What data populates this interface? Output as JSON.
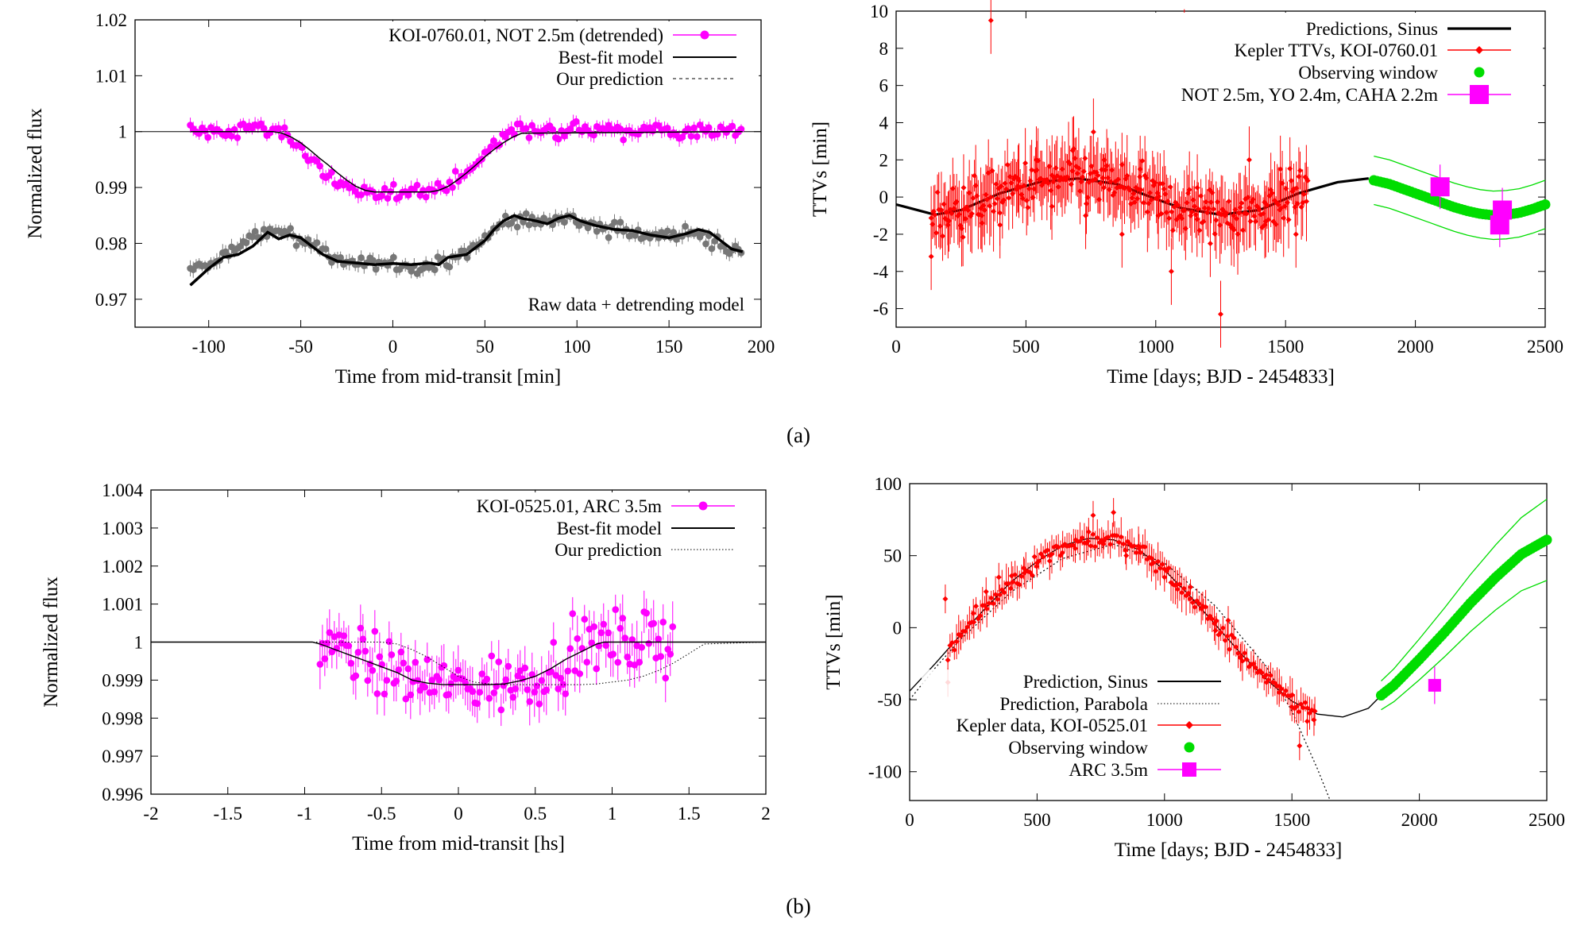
{
  "captions": [
    "(a)",
    "(b)"
  ],
  "chart_data": [
    {
      "id": "a-left",
      "type": "scatter",
      "xlabel": "Time from mid-transit [min]",
      "ylabel": "Normalized flux",
      "xlim": [
        -140,
        200
      ],
      "ylim": [
        0.965,
        1.02
      ],
      "xticks": [
        -100,
        -50,
        0,
        50,
        100,
        150,
        200
      ],
      "yticks": [
        0.97,
        0.98,
        0.99,
        1,
        1.01,
        1.02
      ],
      "ytick_labels": [
        "0.97",
        "0.98",
        "0.99",
        "1",
        "1.01",
        "1.02"
      ],
      "legend_position": "top-right",
      "annotations": [
        "Raw data + detrending model"
      ],
      "series": [
        {
          "name": "KOI-0760.01, NOT 2.5m (detrended)",
          "kind": "points",
          "color": "#ff00ff",
          "note": "scatter of ~190 points following the model, sigma ~0.0015",
          "x": [
            -110,
            -100,
            -90,
            -80,
            -70,
            -60,
            -50,
            -40,
            -30,
            -20,
            -10,
            0,
            10,
            20,
            30,
            40,
            50,
            60,
            70,
            80,
            90,
            100,
            110,
            120,
            130,
            140,
            150,
            160,
            170,
            180,
            190
          ],
          "y": [
            1.0005,
            1.0,
            0.9995,
            1.0015,
            1.0003,
            0.9995,
            0.997,
            0.9935,
            0.991,
            0.9895,
            0.9885,
            0.989,
            0.9895,
            0.989,
            0.9905,
            0.9925,
            0.996,
            0.9995,
            1.001,
            1.0005,
            1.0,
            1.001,
            0.9995,
            1.0005,
            1.0,
            1.001,
            1.0,
            0.9995,
            1.0005,
            1.0,
            1.0003
          ]
        },
        {
          "name": "Best-fit model",
          "kind": "line",
          "color": "#000000",
          "x": [
            -110,
            -65,
            -60,
            -55,
            -50,
            -45,
            -40,
            -35,
            -30,
            -25,
            -20,
            -15,
            -10,
            20,
            25,
            30,
            35,
            40,
            45,
            50,
            55,
            60,
            65,
            70,
            190
          ],
          "y": [
            1.0,
            1.0,
            0.9997,
            0.999,
            0.998,
            0.9967,
            0.9953,
            0.994,
            0.9926,
            0.9913,
            0.9902,
            0.9895,
            0.9892,
            0.9892,
            0.9895,
            0.9902,
            0.9913,
            0.9926,
            0.994,
            0.9955,
            0.9968,
            0.998,
            0.999,
            0.9997,
            1.0
          ]
        },
        {
          "name": "Our prediction",
          "kind": "dashed-line",
          "color": "#000000",
          "x": [],
          "y": []
        },
        {
          "name": "Raw data",
          "kind": "points",
          "color": "#777777",
          "x": [
            -110,
            -100,
            -90,
            -80,
            -70,
            -60,
            -50,
            -40,
            -30,
            -20,
            -10,
            0,
            10,
            20,
            30,
            40,
            50,
            60,
            70,
            80,
            90,
            100,
            110,
            120,
            130,
            140,
            150,
            160,
            170,
            180,
            190
          ],
          "y": [
            0.975,
            0.976,
            0.978,
            0.98,
            0.982,
            0.982,
            0.981,
            0.979,
            0.977,
            0.9765,
            0.976,
            0.976,
            0.976,
            0.9765,
            0.977,
            0.978,
            0.9805,
            0.9835,
            0.984,
            0.9835,
            0.985,
            0.984,
            0.983,
            0.9825,
            0.982,
            0.9815,
            0.981,
            0.982,
            0.981,
            0.979,
            0.978
          ]
        },
        {
          "name": "Detrending model",
          "kind": "line",
          "color": "#000000",
          "x": [
            -110,
            -100,
            -92,
            -84,
            -76,
            -68,
            -62,
            -56,
            -50,
            -44,
            -38,
            -30,
            -20,
            -10,
            0,
            10,
            20,
            25,
            30,
            40,
            50,
            55,
            60,
            66,
            70,
            78,
            84,
            90,
            96,
            102,
            110,
            120,
            130,
            140,
            150,
            160,
            166,
            172,
            178,
            184,
            190
          ],
          "y": [
            0.9725,
            0.9755,
            0.9775,
            0.978,
            0.9795,
            0.982,
            0.9808,
            0.9815,
            0.981,
            0.9795,
            0.978,
            0.9768,
            0.9765,
            0.9762,
            0.9764,
            0.9762,
            0.9765,
            0.9762,
            0.9775,
            0.978,
            0.9805,
            0.9825,
            0.984,
            0.985,
            0.9845,
            0.984,
            0.9835,
            0.9845,
            0.985,
            0.984,
            0.9832,
            0.9825,
            0.9823,
            0.9815,
            0.981,
            0.9818,
            0.9825,
            0.982,
            0.9805,
            0.979,
            0.9785
          ]
        }
      ]
    },
    {
      "id": "a-right",
      "type": "scatter",
      "xlabel": "Time [days; BJD - 2454833]",
      "ylabel": "TTVs [min]",
      "xlim": [
        0,
        2500
      ],
      "ylim": [
        -7,
        10
      ],
      "xticks": [
        0,
        500,
        1000,
        1500,
        2000,
        2500
      ],
      "yticks": [
        -6,
        -4,
        -2,
        0,
        2,
        4,
        6,
        8,
        10
      ],
      "legend_position": "top-right",
      "series": [
        {
          "name": "Predictions, Sinus",
          "kind": "line",
          "color": "#000000",
          "x": [
            0,
            150,
            250,
            400,
            550,
            700,
            850,
            1000,
            1100,
            1250,
            1400,
            1550,
            1700,
            1820
          ],
          "y": [
            -0.4,
            -0.95,
            -0.7,
            0.2,
            0.8,
            1.0,
            0.7,
            -0.1,
            -0.6,
            -0.95,
            -0.7,
            0.2,
            0.8,
            1.0
          ]
        },
        {
          "name": "Kepler TTVs, KOI-0760.01",
          "kind": "points-with-errorbars",
          "color": "#ff0000",
          "note": "~300 points between 130 and 1590 days, error bars ~1-3 min",
          "x": [
            135,
            200,
            260,
            330,
            365,
            400,
            470,
            540,
            600,
            640,
            680,
            730,
            760,
            800,
            870,
            940,
            1010,
            1060,
            1110,
            1160,
            1210,
            1250,
            1300,
            1360,
            1420,
            1480,
            1540,
            1580
          ],
          "y": [
            -3.2,
            -1.5,
            0.5,
            -1.0,
            9.5,
            -1.5,
            1.0,
            2.0,
            -0.5,
            1.5,
            2.5,
            -1.0,
            3.5,
            0.5,
            -2.0,
            1.5,
            -1.0,
            -4.0,
            8.3,
            0.5,
            -2.5,
            -6.3,
            -1.0,
            2.0,
            -1.5,
            1.5,
            -2.0,
            1.0
          ]
        },
        {
          "name": "Observing window",
          "kind": "band",
          "color": "#00dd00",
          "x": [
            1840,
            1900,
            1950,
            2000,
            2050,
            2100,
            2150,
            2200,
            2250,
            2300,
            2350,
            2400,
            2450,
            2500
          ],
          "y": [
            0.9,
            0.7,
            0.45,
            0.2,
            -0.05,
            -0.3,
            -0.55,
            -0.75,
            -0.9,
            -0.98,
            -0.95,
            -0.85,
            -0.65,
            -0.4
          ]
        },
        {
          "name": "NOT 2.5m, YO 2.4m, CAHA 2.2m",
          "kind": "points-with-errorbars",
          "color": "#ff00ff",
          "x": [
            2095,
            2325,
            2335
          ],
          "y": [
            0.55,
            -1.5,
            -0.7
          ]
        }
      ]
    },
    {
      "id": "b-left",
      "type": "scatter",
      "xlabel": "Time from mid-transit [hs]",
      "ylabel": "Normalized flux",
      "xlim": [
        -2,
        2
      ],
      "ylim": [
        0.996,
        1.004
      ],
      "xticks": [
        -2,
        -1.5,
        -1,
        -0.5,
        0,
        0.5,
        1,
        1.5,
        2
      ],
      "xtick_labels": [
        "-2",
        "-1.5",
        "-1",
        "-0.5",
        "0",
        "0.5",
        "1",
        "1.5",
        "2"
      ],
      "yticks": [
        0.996,
        0.997,
        0.998,
        0.999,
        1,
        1.001,
        1.002,
        1.003,
        1.004
      ],
      "ytick_labels": [
        "0.996",
        "0.997",
        "0.998",
        "0.999",
        "1",
        "1.001",
        "1.002",
        "1.003",
        "1.004"
      ],
      "legend_position": "top-right",
      "series": [
        {
          "name": "KOI-0525.01, ARC 3.5m",
          "kind": "points-with-errorbars",
          "color": "#ff00ff",
          "note": "~150 points between -0.9 and 1.4 hs, sigma ~0.0008",
          "x": [
            -0.9,
            -0.8,
            -0.7,
            -0.6,
            -0.5,
            -0.4,
            -0.3,
            -0.2,
            -0.1,
            0.0,
            0.1,
            0.2,
            0.3,
            0.4,
            0.5,
            0.6,
            0.7,
            0.8,
            0.9,
            1.0,
            1.1,
            1.2,
            1.3,
            1.4
          ],
          "y": [
            0.9992,
            1.0006,
            0.9995,
            1.0002,
            0.9994,
            0.9993,
            0.9985,
            0.9992,
            0.9978,
            0.9988,
            0.9986,
            0.9982,
            0.9992,
            0.999,
            0.9995,
            0.9998,
            0.9992,
            1.0005,
            0.9996,
            1.0003,
            0.9992,
            1.0,
            0.9995,
            0.9998
          ]
        },
        {
          "name": "Best-fit model",
          "kind": "line",
          "color": "#000000",
          "x": [
            -2,
            -0.95,
            -0.9,
            -0.8,
            -0.7,
            -0.6,
            -0.5,
            -0.4,
            -0.3,
            -0.2,
            -0.1,
            0.0,
            0.1,
            0.2,
            0.3,
            0.4,
            0.5,
            0.6,
            0.7,
            0.8,
            0.9,
            0.95,
            2
          ],
          "y": [
            1.0,
            1.0,
            0.99995,
            0.9998,
            0.99965,
            0.9995,
            0.99935,
            0.9992,
            0.999,
            0.99892,
            0.99888,
            0.99888,
            0.99888,
            0.99888,
            0.9989,
            0.99898,
            0.9991,
            0.9993,
            0.99955,
            0.99975,
            0.99995,
            1.0,
            1.0
          ]
        },
        {
          "name": "Our prediction",
          "kind": "dotted-line",
          "color": "#000000",
          "x": [
            -2,
            -0.95,
            -0.9,
            -0.8,
            -0.7,
            -0.6,
            -0.5,
            -0.4,
            -0.3,
            -0.2,
            -0.1,
            0.0,
            0.1,
            0.2,
            0.3,
            0.4,
            0.5,
            0.6,
            0.7,
            0.8,
            0.9,
            1.0,
            1.1,
            1.2,
            1.3,
            1.4,
            1.5,
            1.6,
            2
          ],
          "y": [
            1.0,
            1.0,
            1.0,
            1.0,
            1.0,
            1.0,
            1.0,
            0.99995,
            0.9998,
            0.9996,
            0.99935,
            0.9991,
            0.99895,
            0.9989,
            0.99888,
            0.99888,
            0.99888,
            0.99888,
            0.99888,
            0.99888,
            0.9989,
            0.99895,
            0.999,
            0.9991,
            0.99925,
            0.99945,
            0.9997,
            0.99995,
            1.0
          ]
        }
      ]
    },
    {
      "id": "b-right",
      "type": "scatter",
      "xlabel": "Time [days; BJD - 2454833]",
      "ylabel": "TTVs [min]",
      "xlim": [
        0,
        2500
      ],
      "ylim": [
        -120,
        100
      ],
      "xticks": [
        0,
        500,
        1000,
        1500,
        2000,
        2500
      ],
      "yticks": [
        -100,
        -50,
        0,
        50,
        100
      ],
      "legend_position": "bottom-center",
      "series": [
        {
          "name": "Prediction, Sinus",
          "kind": "line",
          "color": "#000000",
          "x": [
            0,
            100,
            200,
            300,
            400,
            500,
            600,
            700,
            800,
            900,
            1000,
            1100,
            1200,
            1300,
            1400,
            1500,
            1600,
            1700,
            1800,
            1850
          ],
          "y": [
            -44,
            -25,
            -5,
            14,
            32,
            46,
            57,
            62,
            61,
            54,
            40,
            22,
            2,
            -18,
            -36,
            -51,
            -60,
            -62,
            -56,
            -47
          ]
        },
        {
          "name": "Prediction, Parabola",
          "kind": "dotted-line",
          "color": "#000000",
          "x": [
            0,
            100,
            200,
            400,
            600,
            800,
            1000,
            1200,
            1400,
            1500,
            1600,
            1650
          ],
          "y": [
            -50,
            -28,
            -8,
            25,
            48,
            58,
            45,
            15,
            -27,
            -58,
            -98,
            -120
          ]
        },
        {
          "name": "Kepler data, KOI-0525.01",
          "kind": "points-with-errorbars",
          "color": "#ff0000",
          "note": "~170 points between 140 and 1590 days, error bars ~5-15 min",
          "x": [
            140,
            150,
            200,
            250,
            300,
            350,
            400,
            450,
            500,
            550,
            600,
            650,
            700,
            720,
            760,
            800,
            850,
            900,
            950,
            1000,
            1050,
            1100,
            1150,
            1200,
            1250,
            1300,
            1350,
            1400,
            1450,
            1500,
            1530,
            1560,
            1590
          ],
          "y": [
            20,
            -38,
            -5,
            10,
            25,
            35,
            36,
            38,
            45,
            50,
            52,
            55,
            60,
            78,
            58,
            80,
            50,
            55,
            48,
            35,
            30,
            20,
            15,
            -2,
            5,
            -20,
            -25,
            -38,
            -45,
            -55,
            -82,
            -65,
            -58
          ]
        },
        {
          "name": "Observing window",
          "kind": "band",
          "color": "#00dd00",
          "x": [
            1850,
            1900,
            2000,
            2100,
            2200,
            2300,
            2400,
            2500
          ],
          "y": [
            -47,
            -40,
            -22,
            -3,
            17,
            35,
            51,
            61
          ]
        },
        {
          "name": "ARC 3.5m",
          "kind": "points-with-errorbars",
          "color": "#ff00ff",
          "x": [
            2060
          ],
          "y": [
            -40
          ]
        }
      ]
    }
  ]
}
